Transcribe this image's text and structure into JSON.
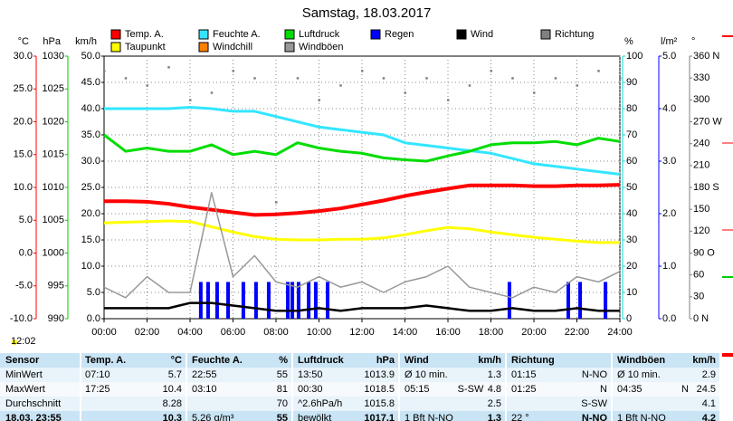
{
  "chart_data": {
    "type": "line",
    "title": "Samstag, 18.03.2017",
    "day_length": "12:02",
    "xlim": [
      0,
      24
    ],
    "xticks": [
      {
        "value": 0,
        "label": "00:00"
      },
      {
        "value": 2,
        "label": "02:00"
      },
      {
        "value": 4,
        "label": "04:00"
      },
      {
        "value": 6,
        "label": "06:00"
      },
      {
        "value": 8,
        "label": "08:00"
      },
      {
        "value": 10,
        "label": "10:00"
      },
      {
        "value": 12,
        "label": "12:00"
      },
      {
        "value": 14,
        "label": "14:00"
      },
      {
        "value": 16,
        "label": "16:00"
      },
      {
        "value": 18,
        "label": "18:00"
      },
      {
        "value": 20,
        "label": "20:00"
      },
      {
        "value": 22,
        "label": "22:00"
      },
      {
        "value": 24,
        "label": "24:00"
      }
    ],
    "grid": true,
    "x": [
      0,
      1,
      2,
      3,
      4,
      5,
      6,
      7,
      8,
      9,
      10,
      11,
      12,
      13,
      14,
      15,
      16,
      17,
      18,
      19,
      20,
      21,
      22,
      23,
      24
    ],
    "axes": [
      {
        "id": "temp",
        "label": "°C",
        "color": "#ff0000",
        "ylim": [
          -10,
          30
        ],
        "yticks": [
          {
            "value": 30,
            "label": "30.0"
          },
          {
            "value": 25,
            "label": "25.0"
          },
          {
            "value": 20,
            "label": "20.0"
          },
          {
            "value": 15,
            "label": "15.0"
          },
          {
            "value": 10,
            "label": "10.0"
          },
          {
            "value": 5,
            "label": "5.0"
          },
          {
            "value": 0,
            "label": "0.0"
          },
          {
            "value": -5,
            "label": "-5.0"
          },
          {
            "value": -10,
            "label": "-10.0"
          }
        ]
      },
      {
        "id": "hpa",
        "label": "hPa",
        "color": "#00cc00",
        "ylim": [
          990,
          1030
        ],
        "yticks": [
          1030,
          1025,
          1020,
          1015,
          1010,
          1005,
          1000,
          995,
          990
        ]
      },
      {
        "id": "kmh",
        "label": "km/h",
        "color": "#000000",
        "ylim": [
          0,
          50
        ],
        "yticks": [
          {
            "value": 50,
            "label": "50.0"
          },
          {
            "value": 45,
            "label": "45.0"
          },
          {
            "value": 40,
            "label": "40.0"
          },
          {
            "value": 35,
            "label": "35.0"
          },
          {
            "value": 30,
            "label": "30.0"
          },
          {
            "value": 25,
            "label": "25.0"
          },
          {
            "value": 20,
            "label": "20.0"
          },
          {
            "value": 15,
            "label": "15.0"
          },
          {
            "value": 10,
            "label": "10.0"
          },
          {
            "value": 5,
            "label": "5.0"
          },
          {
            "value": 0,
            "label": "0.0"
          }
        ]
      },
      {
        "id": "pct",
        "label": "%",
        "color": "#00dddd",
        "ylim": [
          0,
          100
        ],
        "yticks": [
          100,
          90,
          80,
          70,
          60,
          50,
          40,
          30,
          20,
          10,
          0
        ]
      },
      {
        "id": "rain",
        "label": "l/m²",
        "color": "#0000ff",
        "ylim": [
          0,
          5
        ],
        "yticks": [
          {
            "value": 5,
            "label": "5.0"
          },
          {
            "value": 4,
            "label": "4.0"
          },
          {
            "value": 3,
            "label": "3.0"
          },
          {
            "value": 2,
            "label": "2.0"
          },
          {
            "value": 1,
            "label": "1.0"
          },
          {
            "value": 0,
            "label": "0.0"
          }
        ]
      },
      {
        "id": "dir",
        "label": "°",
        "color": "#808080",
        "ylim": [
          0,
          360
        ],
        "yticks": [
          {
            "value": 360,
            "label": "360 N"
          },
          330,
          300,
          {
            "value": 270,
            "label": "270 W"
          },
          240,
          210,
          {
            "value": 180,
            "label": "180 S"
          },
          150,
          120,
          {
            "value": 90,
            "label": "90 O"
          },
          60,
          30,
          {
            "value": 0,
            "label": "0 N"
          }
        ]
      }
    ],
    "series": [
      {
        "name": "Temp. A.",
        "color": "#ff0000",
        "axis": "temp",
        "style": "line",
        "width": 4,
        "values": [
          7.9,
          7.9,
          7.8,
          7.5,
          7.0,
          6.6,
          6.2,
          5.8,
          5.9,
          6.1,
          6.4,
          6.8,
          7.4,
          8.0,
          8.7,
          9.3,
          9.8,
          10.3,
          10.3,
          10.3,
          10.2,
          10.2,
          10.3,
          10.3,
          10.4
        ]
      },
      {
        "name": "Feuchte A.",
        "color": "#33e6ff",
        "axis": "pct",
        "style": "line",
        "width": 3,
        "values": [
          80,
          80,
          80,
          80,
          80.5,
          80,
          79,
          79,
          77,
          75,
          73,
          72,
          71,
          70,
          67,
          66,
          65,
          64,
          63,
          61,
          59,
          58,
          57,
          56,
          55
        ]
      },
      {
        "name": "Luftdruck",
        "color": "#00dd00",
        "axis": "hpa",
        "style": "line",
        "width": 3,
        "values": [
          1018.0,
          1015.5,
          1016.0,
          1015.5,
          1015.5,
          1016.5,
          1015.0,
          1015.5,
          1015.0,
          1016.8,
          1016.0,
          1015.5,
          1015.2,
          1014.5,
          1014.2,
          1014.0,
          1014.8,
          1015.5,
          1016.5,
          1016.8,
          1016.8,
          1017.0,
          1016.5,
          1017.5,
          1017.0
        ]
      },
      {
        "name": "Regen",
        "color": "#0000ff",
        "axis": "rain",
        "style": "bars",
        "x": [
          4.5,
          4.84,
          5.26,
          5.77,
          6.48,
          7.07,
          7.66,
          8.55,
          8.76,
          9.05,
          9.52,
          9.85,
          10.4,
          18.86,
          21.6,
          22.15,
          23.33
        ],
        "values": [
          0.7,
          0.7,
          0.7,
          0.7,
          0.7,
          0.7,
          0.7,
          0.7,
          0.7,
          0.7,
          0.7,
          0.7,
          0.7,
          0.7,
          0.7,
          0.7,
          0.7
        ]
      },
      {
        "name": "Wind",
        "color": "#000000",
        "axis": "kmh",
        "style": "line",
        "width": 2.5,
        "values": [
          2,
          2,
          2,
          2,
          3,
          3,
          2.5,
          2,
          1.5,
          1.5,
          2,
          1.5,
          2,
          2,
          2,
          2.5,
          2,
          1.5,
          1.5,
          2,
          1.5,
          1.5,
          2,
          1.5,
          1.5
        ]
      },
      {
        "name": "Richtung",
        "color": "#808080",
        "axis": "dir",
        "style": "dots",
        "values": [
          340,
          330,
          320,
          345,
          300,
          310,
          340,
          330,
          160,
          330,
          300,
          320,
          340,
          330,
          310,
          330,
          300,
          320,
          340,
          330,
          310,
          330,
          320,
          340,
          330
        ]
      },
      {
        "name": "Taupunkt",
        "color": "#ffff00",
        "axis": "temp",
        "style": "line",
        "width": 3,
        "values": [
          4.6,
          4.7,
          4.8,
          4.9,
          4.8,
          4.0,
          3.2,
          2.5,
          2.1,
          2.0,
          2.0,
          2.1,
          2.1,
          2.3,
          2.8,
          3.4,
          3.9,
          3.7,
          3.2,
          2.8,
          2.4,
          2.1,
          1.8,
          1.6,
          1.6
        ]
      },
      {
        "name": "Windchill",
        "color": "#ff8000",
        "axis": "temp",
        "style": "none"
      },
      {
        "name": "Windböen",
        "color": "#999999",
        "axis": "kmh",
        "style": "line",
        "width": 1.5,
        "values": [
          6,
          4,
          8,
          5,
          5,
          24,
          8,
          12,
          7,
          6,
          8,
          6,
          7,
          5,
          7,
          8,
          10,
          6,
          5,
          4,
          6,
          5,
          8,
          7,
          9
        ]
      }
    ]
  },
  "table": {
    "header": [
      "Sensor",
      {
        "l": "Temp. A.",
        "r": "°C"
      },
      {
        "l": "Feuchte A.",
        "r": "%"
      },
      {
        "l": "Luftdruck",
        "r": "hPa"
      },
      {
        "l": "Wind",
        "r": "km/h"
      },
      {
        "l": "Richtung"
      },
      {
        "l": "Windböen",
        "r": "km/h"
      }
    ],
    "rows": [
      [
        "MinWert",
        {
          "l": "07:10",
          "r": "5.7"
        },
        {
          "l": "22:55",
          "r": "55"
        },
        {
          "l": "13:50",
          "r": "1013.9"
        },
        {
          "l": "Ø 10 min.",
          "r": "1.3"
        },
        {
          "l": "01:15",
          "r": "N-NO"
        },
        {
          "l": "Ø 10 min.",
          "r": "2.9"
        }
      ],
      [
        "MaxWert",
        {
          "l": "17:25",
          "r": "10.4"
        },
        {
          "l": "03:10",
          "r": "81"
        },
        {
          "l": "00:30",
          "r": "1018.5"
        },
        {
          "l": "05:15",
          "m": "S-SW",
          "r": "4.8"
        },
        {
          "l": "01:25",
          "r": "N"
        },
        {
          "l": "04:35",
          "m": "N",
          "r": "24.5"
        }
      ],
      [
        "Durchschnitt",
        {
          "r": "8.28"
        },
        {
          "r": "70"
        },
        {
          "l": "^2.6hPa/h",
          "r": "1015.8"
        },
        {
          "r": "2.5"
        },
        {
          "r": "S-SW"
        },
        {
          "r": "4.1"
        }
      ],
      [
        "18.03. 23:55",
        {
          "r": "10.3"
        },
        {
          "l": "5.26 g/m³",
          "r": "55"
        },
        {
          "l": "bewölkt",
          "r": "1017.1"
        },
        {
          "l": "1 Bft N-NO",
          "r": "1.3"
        },
        {
          "l": "22 °",
          "r": "N-NO"
        },
        {
          "l": "1 Bft N-NO",
          "r": "4.2"
        }
      ]
    ]
  }
}
